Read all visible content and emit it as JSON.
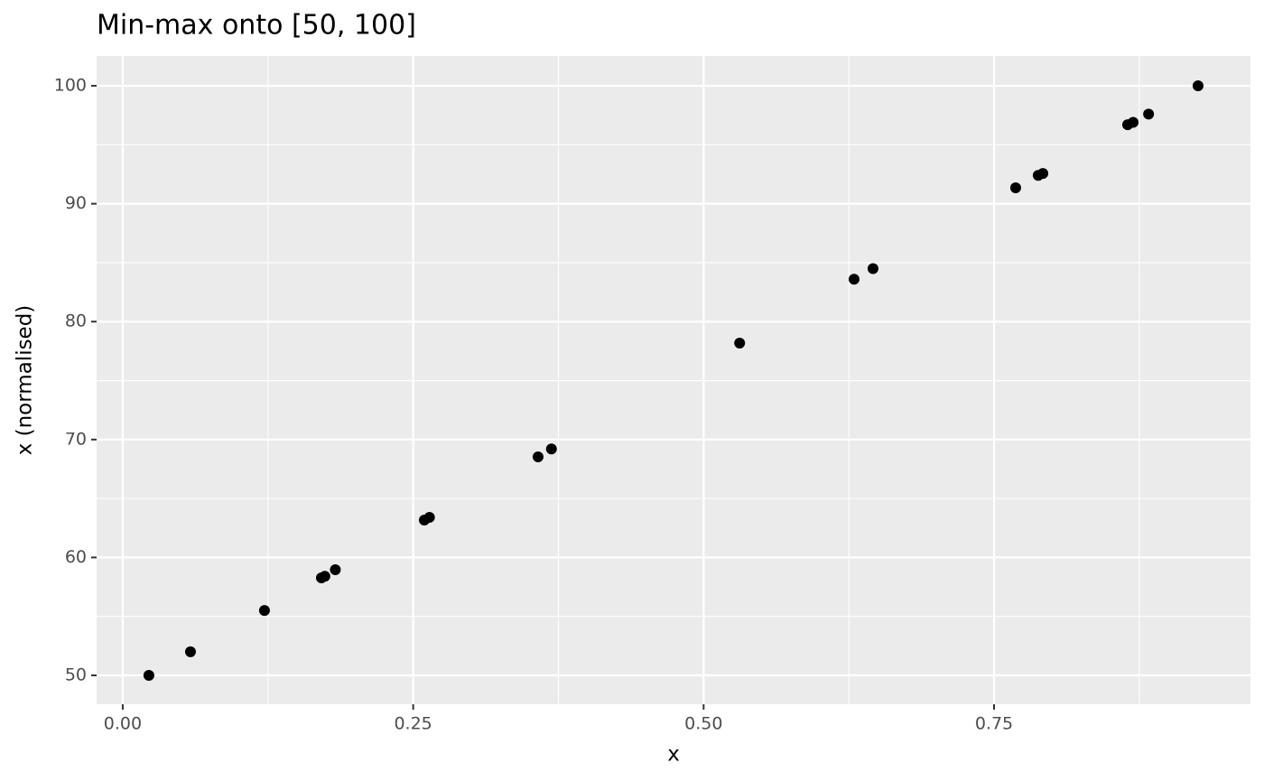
{
  "chart_data": {
    "type": "scatter",
    "title": "Min-max onto [50, 100]",
    "x_label": "x",
    "y_label": "x (normalised)",
    "color": "#000000",
    "x": [
      0.0225,
      0.0583,
      0.122,
      0.171,
      0.174,
      0.183,
      0.2596,
      0.264,
      0.3575,
      0.369,
      0.531,
      0.6295,
      0.6458,
      0.7686,
      0.788,
      0.792,
      0.865,
      0.8697,
      0.883,
      0.9256
    ],
    "values": [
      50,
      52.0,
      55.5,
      58.27,
      58.4,
      58.96,
      63.17,
      63.4,
      68.53,
      69.2,
      78.18,
      83.6,
      84.5,
      91.35,
      92.4,
      92.57,
      96.7,
      96.9,
      97.6,
      100
    ],
    "xlim": [
      -0.0225,
      0.9707
    ],
    "ylim": [
      47.55,
      102.53
    ],
    "xticks": [
      {
        "value": 0,
        "label": "0.00"
      },
      {
        "value": 0.25,
        "label": "0.25"
      },
      {
        "value": 0.5,
        "label": "0.50"
      },
      {
        "value": 0.75,
        "label": "0.75"
      }
    ],
    "yticks": [
      50,
      60,
      70,
      80,
      90,
      100
    ],
    "x_minor_grid": [
      0.125,
      0.375,
      0.625,
      0.875
    ],
    "y_minor_grid": [
      55,
      65,
      75,
      85,
      95
    ],
    "grid": true
  }
}
